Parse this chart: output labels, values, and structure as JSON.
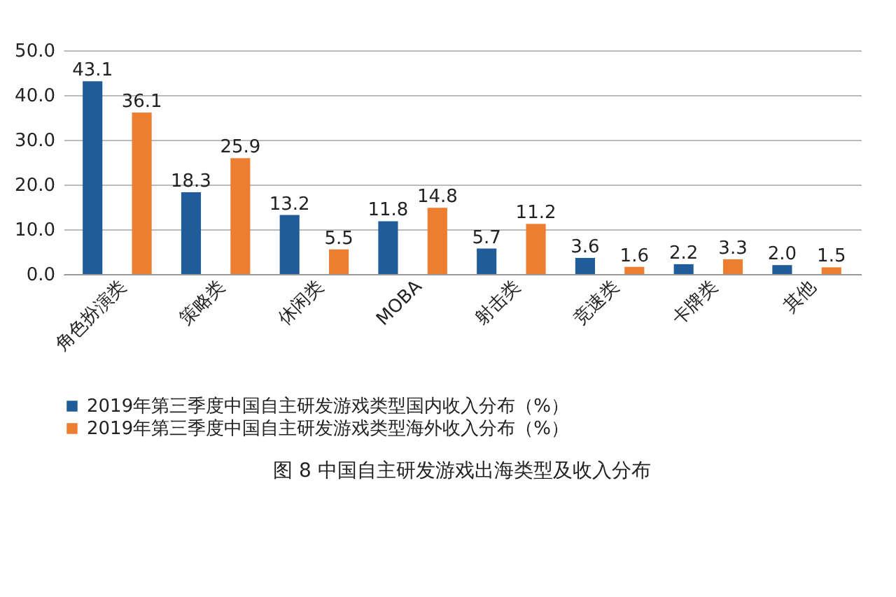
{
  "chart_data": {
    "type": "bar",
    "categories": [
      "角色扮演类",
      "策略类",
      "休闲类",
      "MOBA",
      "射击类",
      "竞速类",
      "卡牌类",
      "其他"
    ],
    "series": [
      {
        "name": "2019年第三季度中国自主研发游戏类型国内收入分布（%）",
        "color": "#1f5c99",
        "values": [
          43.1,
          18.3,
          13.2,
          11.8,
          5.7,
          3.6,
          2.2,
          2.0
        ],
        "value_labels": [
          "43.1",
          "18.3",
          "13.2",
          "11.8",
          "5.7",
          "3.6",
          "2.2",
          "2.0"
        ]
      },
      {
        "name": "2019年第三季度中国自主研发游戏类型海外收入分布（%）",
        "color": "#ed7d31",
        "values": [
          36.1,
          25.9,
          5.5,
          14.8,
          11.2,
          1.6,
          3.3,
          1.5
        ],
        "value_labels": [
          "36.1",
          "25.9",
          "5.5",
          "14.8",
          "11.2",
          "1.6",
          "3.3",
          "1.5"
        ]
      }
    ],
    "ylim": [
      0,
      50
    ],
    "yticks": [
      {
        "value": 0,
        "label": "0.0"
      },
      {
        "value": 10,
        "label": "10.0"
      },
      {
        "value": 20,
        "label": "20.0"
      },
      {
        "value": 30,
        "label": "30.0"
      },
      {
        "value": 40,
        "label": "40.0"
      },
      {
        "value": 50,
        "label": "50.0"
      }
    ],
    "grid": "y",
    "legend": "bottom",
    "annotations": [
      "图 8 中国自主研发游戏出海类型及收入分布"
    ]
  }
}
